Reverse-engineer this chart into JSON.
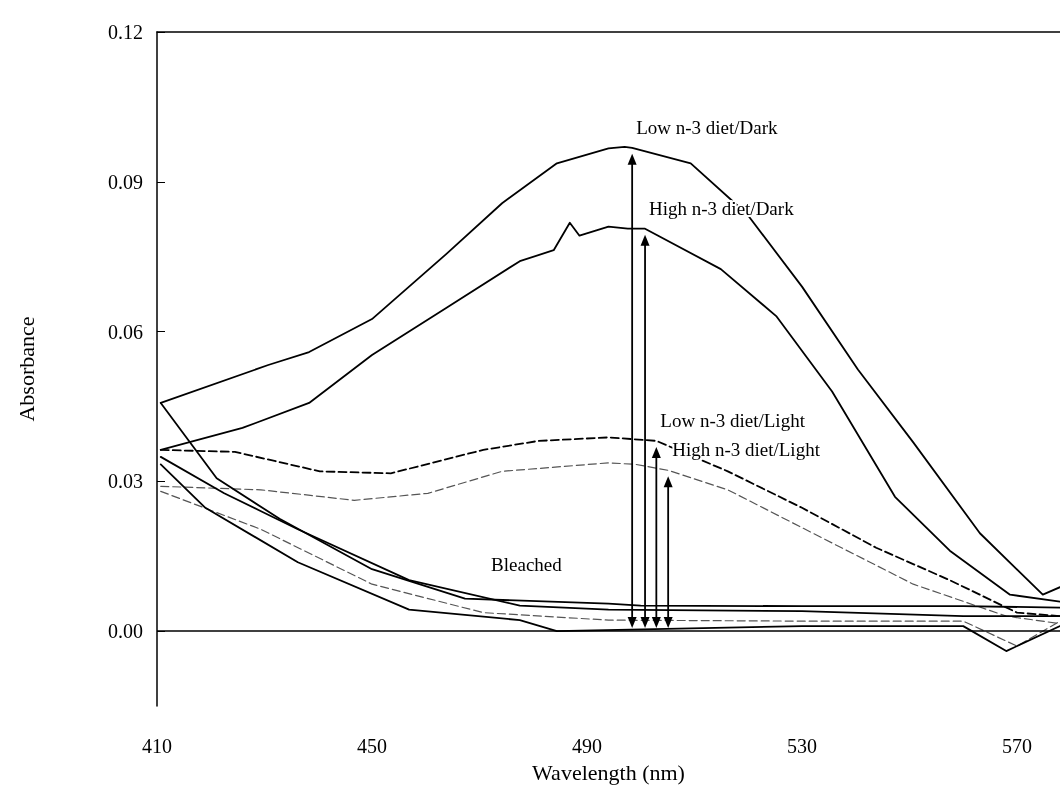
{
  "chart_data": {
    "type": "line",
    "xlabel": "Wavelength (nm)",
    "ylabel": "Absorbance",
    "xlim": [
      410,
      578
    ],
    "ylim": [
      -0.015,
      0.12
    ],
    "xticks": [
      410,
      450,
      490,
      530,
      570
    ],
    "yticks": [
      {
        "value": 0,
        "label": "0.00"
      },
      {
        "value": 0.03,
        "label": "0.03"
      },
      {
        "value": 0.06,
        "label": "0.06"
      },
      {
        "value": 0.09,
        "label": "0.09"
      },
      {
        "value": 0.12,
        "label": "0.12"
      }
    ],
    "grid": false,
    "marker": "none",
    "ref_lines": [
      {
        "axis": "y",
        "value": 0,
        "color": "#000000"
      }
    ],
    "annotations": [
      {
        "text": "Low n-3 diet/Dark",
        "x": 498.4,
        "y": 0.0968
      },
      {
        "text": "High n-3 diet/Dark",
        "x": 500.8,
        "y": 0.0806
      },
      {
        "text": "Low n-3 diet/Light",
        "x": 502.9,
        "y": 0.0381
      },
      {
        "text": "High n-3 diet/Light",
        "x": 505.1,
        "y": 0.0322
      },
      "Bleached"
    ],
    "series": [
      {
        "color": "#000000",
        "line_style": "solid",
        "x": [
          410.7,
          430.7,
          438.3,
          450,
          463.8,
          474.2,
          484.4,
          494,
          497,
          498.4,
          509.3,
          519.8,
          530,
          540.4,
          550.7,
          563.1,
          574.8,
          578
        ],
        "values": [
          0.0457,
          0.0533,
          0.0559,
          0.0625,
          0.0755,
          0.0857,
          0.0937,
          0.0967,
          0.097,
          0.0968,
          0.0937,
          0.0835,
          0.069,
          0.0524,
          0.0378,
          0.0196,
          0.0073,
          0.0088
        ]
      },
      {
        "color": "#000000",
        "line_style": "solid",
        "x": [
          410.7,
          425.9,
          438.3,
          450,
          463.8,
          477.5,
          483.8,
          486.8,
          488.6,
          494,
          497.6,
          500.8,
          514.9,
          525.2,
          535.6,
          547.3,
          557.5,
          568.7,
          578
        ],
        "values": [
          0.0363,
          0.0407,
          0.0457,
          0.0553,
          0.0647,
          0.0741,
          0.0763,
          0.0818,
          0.0792,
          0.081,
          0.0806,
          0.0806,
          0.0725,
          0.0631,
          0.048,
          0.0269,
          0.0161,
          0.0073,
          0.0059
        ]
      },
      {
        "color": "#000000",
        "line_style": "dashed",
        "x": [
          410.7,
          424.5,
          440.3,
          453.5,
          470.7,
          481,
          494,
          502.9,
          516.2,
          530,
          543.8,
          557.5,
          570,
          578
        ],
        "values": [
          0.0363,
          0.0359,
          0.032,
          0.0316,
          0.0363,
          0.0381,
          0.0388,
          0.0381,
          0.032,
          0.0247,
          0.0167,
          0.0102,
          0.0037,
          0.003
        ]
      },
      {
        "color": "#555555",
        "line_style": "dashed",
        "x": [
          410.7,
          429.3,
          446.7,
          460.4,
          474.2,
          494,
          499,
          505.1,
          516.2,
          533.5,
          550.7,
          568,
          578
        ],
        "values": [
          0.029,
          0.0283,
          0.0262,
          0.0276,
          0.032,
          0.0337,
          0.0334,
          0.0322,
          0.0283,
          0.0188,
          0.0094,
          0.003,
          0.0015
        ]
      },
      {
        "color": "#000000",
        "line_style": "solid",
        "x": [
          410.7,
          421.1,
          432.8,
          450,
          467.3,
          494,
          500,
          530,
          560,
          578
        ],
        "values": [
          0.0457,
          0.0306,
          0.0225,
          0.0124,
          0.0065,
          0.0055,
          0.0051,
          0.005,
          0.005,
          0.0047
        ]
      },
      {
        "color": "#000000",
        "line_style": "solid",
        "x": [
          410.7,
          422.5,
          436.2,
          456.9,
          477.5,
          494,
          530,
          560,
          578
        ],
        "values": [
          0.0349,
          0.0276,
          0.0204,
          0.0102,
          0.0051,
          0.0043,
          0.004,
          0.003,
          0.003
        ]
      },
      {
        "color": "#555555",
        "line_style": "dashed",
        "x": [
          410.7,
          429.3,
          450,
          470.7,
          494,
          530,
          560,
          570,
          578
        ],
        "values": [
          0.028,
          0.0204,
          0.0094,
          0.0037,
          0.0022,
          0.002,
          0.002,
          -0.003,
          0.002
        ]
      },
      {
        "color": "#000000",
        "line_style": "solid",
        "x": [
          410.7,
          419,
          436.2,
          456.9,
          477.5,
          484.4,
          530,
          560,
          568,
          578
        ],
        "values": [
          0.0334,
          0.0247,
          0.0138,
          0.0043,
          0.0022,
          0,
          0.001,
          0.001,
          -0.004,
          0.001
        ]
      }
    ]
  }
}
